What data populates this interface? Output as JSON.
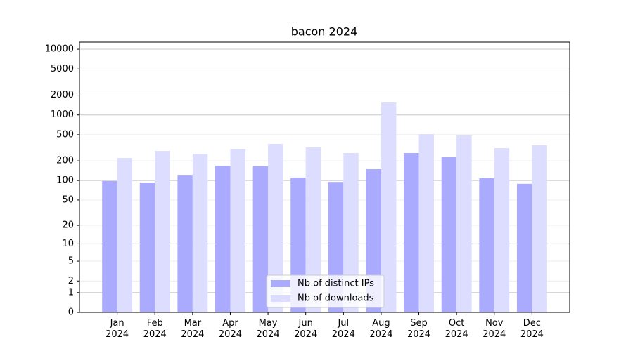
{
  "chart_data": {
    "type": "bar",
    "title": "bacon 2024",
    "categories": [
      "Jan\n2024",
      "Feb\n2024",
      "Mar\n2024",
      "Apr\n2024",
      "May\n2024",
      "Jun\n2024",
      "Jul\n2024",
      "Aug\n2024",
      "Sep\n2024",
      "Oct\n2024",
      "Nov\n2024",
      "Dec\n2024"
    ],
    "series": [
      {
        "name": "Nb of distinct IPs",
        "color": "#aaaaff",
        "values": [
          98,
          93,
          122,
          168,
          165,
          111,
          95,
          149,
          263,
          227,
          108,
          89
        ]
      },
      {
        "name": "Nb of downloads",
        "color": "#ddddff",
        "values": [
          221,
          283,
          257,
          305,
          362,
          320,
          263,
          1545,
          511,
          487,
          312,
          345
        ]
      }
    ],
    "yscale": "symlog",
    "ylim": [
      0,
      12800
    ],
    "yticks": [
      0,
      1,
      2,
      5,
      10,
      20,
      50,
      100,
      200,
      500,
      1000,
      2000,
      5000,
      10000
    ],
    "grid": true,
    "legend": "lower center"
  }
}
